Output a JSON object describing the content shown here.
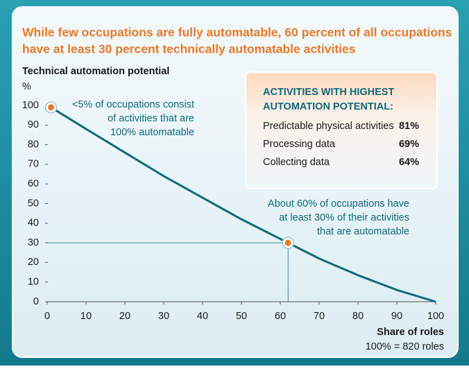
{
  "chart_data": {
    "type": "line",
    "title_lines": [
      "While few occupations are fully automatable, 60 percent of all occupations",
      "have at least 30 percent technically automatable activities"
    ],
    "y_label": "Technical automation potential",
    "y_unit": "%",
    "x_label": "Share of roles",
    "x_note": "100% = 820 roles",
    "x": [
      1,
      10,
      20,
      30,
      40,
      50,
      60,
      70,
      80,
      90,
      100
    ],
    "series": [
      {
        "color": "#0d6a7c",
        "values": [
          99,
          88,
          76,
          64,
          53,
          42,
          32,
          22,
          13.5,
          6,
          0
        ]
      }
    ],
    "highlights": {
      "color": "#e8792a",
      "x": [
        1,
        62
      ],
      "y": [
        99,
        30
      ]
    },
    "xlim": [
      0,
      100
    ],
    "xticks": [
      0,
      10,
      20,
      30,
      40,
      50,
      60,
      70,
      80,
      90,
      100
    ],
    "ylim": [
      0,
      100
    ],
    "yticks": [
      0,
      10,
      20,
      30,
      40,
      50,
      60,
      70,
      80,
      90,
      100
    ],
    "annotations": [
      {
        "lines": [
          "<5% of occupations consist",
          "of activities that are",
          "100% automatable"
        ]
      },
      {
        "lines": [
          "About 60% of occupations have",
          "at least 30% of their activities",
          "that are automatable"
        ]
      }
    ],
    "info_box": {
      "title_lines": [
        "ACTIVITIES WITH HIGHEST",
        "AUTOMATION POTENTIAL:"
      ],
      "labels": [
        "Predictable physical activities",
        "Processing data",
        "Collecting data"
      ],
      "values": [
        81,
        69,
        64
      ],
      "value_labels": [
        "81%",
        "69%",
        "64%"
      ]
    }
  }
}
